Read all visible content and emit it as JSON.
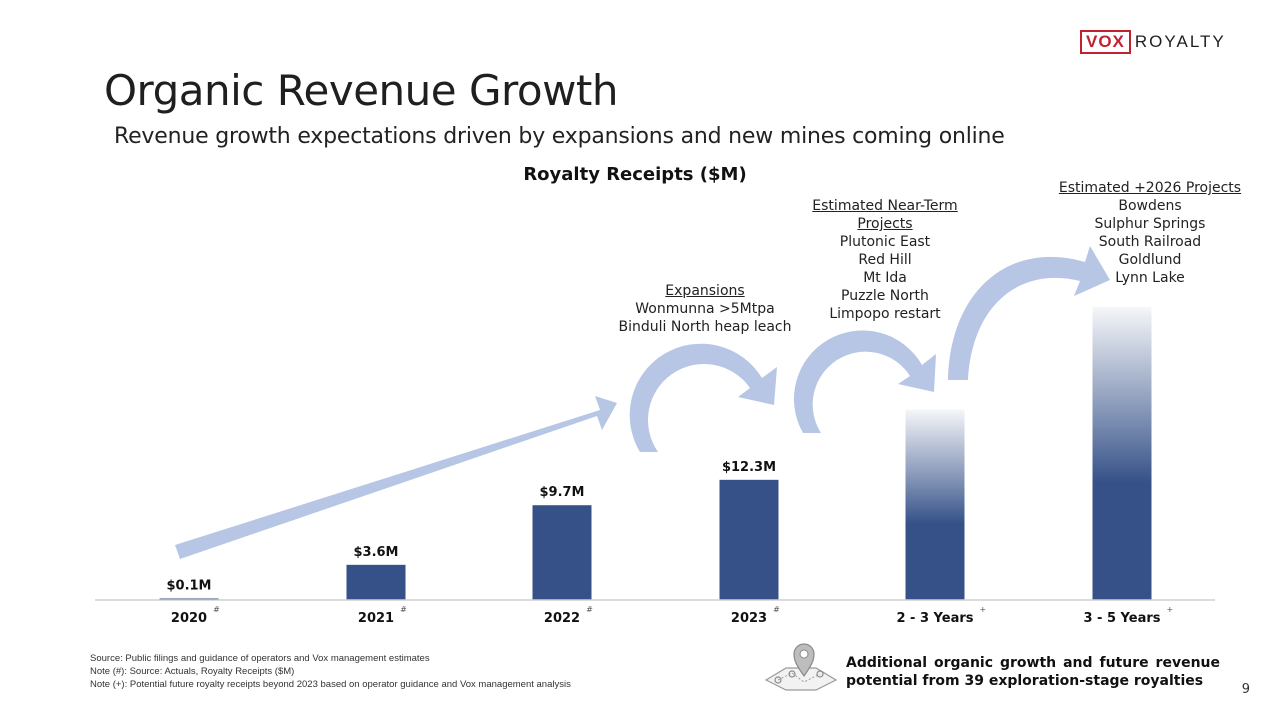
{
  "logo": {
    "vox": "VOX",
    "royalty": "ROYALTY"
  },
  "title": "Organic Revenue Growth",
  "subtitle": "Revenue growth expectations driven by expansions and new mines coming online",
  "chart_data": {
    "type": "bar",
    "title": "Royalty Receipts ($M)",
    "categories": [
      "2020",
      "2021",
      "2022",
      "2023",
      "2 - 3 Years",
      "3 - 5 Years"
    ],
    "category_marks": [
      "#",
      "#",
      "#",
      "#",
      "+",
      "+"
    ],
    "values": [
      0.1,
      3.6,
      9.7,
      12.3,
      19.5,
      30
    ],
    "value_labels": [
      "$0.1M",
      "$3.6M",
      "$9.7M",
      "$12.3M",
      "",
      ""
    ],
    "projected": [
      false,
      false,
      false,
      false,
      true,
      true
    ],
    "ylim": [
      0,
      30.5
    ],
    "grid": false,
    "colors": {
      "bar": "#355188",
      "arrow": "#b6c6e4",
      "axis": "#d0d0d0"
    }
  },
  "annotations": {
    "expansions": {
      "heading": "Expansions",
      "lines": [
        "Wonmunna >5Mtpa",
        "Binduli North heap leach"
      ]
    },
    "near_term": {
      "heading_lines": [
        "Estimated Near-Term",
        "Projects"
      ],
      "lines": [
        "Plutonic East",
        "Red Hill",
        "Mt Ida",
        "Puzzle North",
        "Limpopo restart"
      ]
    },
    "plus_2026": {
      "heading": "Estimated +2026 Projects",
      "lines": [
        "Bowdens",
        "Sulphur Springs",
        "South Railroad",
        "Goldlund",
        "Lynn Lake"
      ]
    }
  },
  "footnotes": [
    "Source: Public filings and guidance of operators and Vox management estimates",
    "Note (#): Source: Actuals, Royalty Receipts ($M)",
    "Note (+): Potential future royalty receipts beyond 2023 based on operator guidance and Vox management analysis"
  ],
  "highlight": "Additional organic growth and future revenue potential from 39 exploration-stage royalties",
  "icons": {
    "map": "map-pin-icon"
  },
  "page_number": "9"
}
